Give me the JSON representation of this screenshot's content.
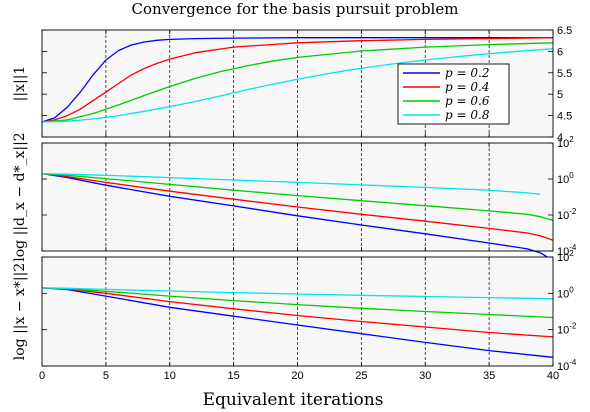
{
  "chart_data": {
    "type": "line",
    "title": "Convergence for the basis pursuit problem",
    "xlabel": "Equivalent iterations",
    "xlim": [
      0,
      40
    ],
    "xticks": [
      "0",
      "5",
      "10",
      "15",
      "20",
      "25",
      "30",
      "35",
      "40"
    ],
    "grid": "vertical dashed lines at x = 5, 10, 15, 20, 25, 30, 35",
    "colors": {
      "p0.2": "#0000ff",
      "p0.4": "#ff0000",
      "p0.6": "#00cc00",
      "p0.8": "#00e5ee"
    },
    "legend": {
      "placement": "top-right of top panel",
      "entries": [
        "p = 0.2",
        "p = 0.4",
        "p = 0.6",
        "p = 0.8"
      ]
    },
    "panels": [
      {
        "ylabel": "||x||1",
        "ylim": [
          4,
          6.5
        ],
        "yscale": "linear",
        "yticks": [
          "4",
          "4.5",
          "5",
          "5.5",
          "6",
          "6.5"
        ],
        "series": [
          {
            "name": "p = 0.2",
            "x": [
              0,
              1,
              2,
              3,
              4,
              5,
              6,
              7,
              8,
              9,
              10,
              12,
              15,
              20,
              25,
              30,
              35,
              40
            ],
            "y": [
              4.35,
              4.45,
              4.7,
              5.05,
              5.45,
              5.8,
              6.02,
              6.15,
              6.22,
              6.26,
              6.28,
              6.3,
              6.31,
              6.32,
              6.32,
              6.32,
              6.32,
              6.32
            ]
          },
          {
            "name": "p = 0.4",
            "x": [
              0,
              1,
              2,
              3,
              4,
              5,
              6,
              7,
              8,
              9,
              10,
              12,
              15,
              20,
              25,
              30,
              35,
              40
            ],
            "y": [
              4.35,
              4.4,
              4.5,
              4.65,
              4.85,
              5.05,
              5.25,
              5.45,
              5.6,
              5.72,
              5.82,
              5.97,
              6.1,
              6.2,
              6.25,
              6.28,
              6.3,
              6.32
            ]
          },
          {
            "name": "p = 0.6",
            "x": [
              0,
              2,
              4,
              6,
              8,
              10,
              12,
              14,
              16,
              18,
              20,
              25,
              30,
              35,
              40
            ],
            "y": [
              4.35,
              4.4,
              4.55,
              4.75,
              4.97,
              5.18,
              5.37,
              5.53,
              5.66,
              5.77,
              5.86,
              6.01,
              6.1,
              6.16,
              6.2
            ]
          },
          {
            "name": "p = 0.8",
            "x": [
              0,
              2,
              4,
              6,
              8,
              10,
              12,
              14,
              16,
              18,
              20,
              22,
              24,
              26,
              28,
              30,
              32,
              34,
              36,
              38,
              40
            ],
            "y": [
              4.35,
              4.37,
              4.42,
              4.5,
              4.6,
              4.71,
              4.83,
              4.96,
              5.1,
              5.23,
              5.35,
              5.46,
              5.56,
              5.65,
              5.73,
              5.8,
              5.86,
              5.92,
              5.97,
              6.02,
              6.06
            ]
          }
        ]
      },
      {
        "ylabel": "log ||d_x − d*_x||2",
        "ylim": [
          0.0001,
          100
        ],
        "yscale": "log",
        "yticks": [
          "10^-4",
          "10^-2",
          "10^0",
          "10^2"
        ],
        "series": [
          {
            "name": "p = 0.2",
            "x": [
              0,
              2,
              5,
              10,
              15,
              20,
              25,
              30,
              35,
              38,
              39,
              40
            ],
            "y": [
              2,
              1.2,
              0.45,
              0.11,
              0.032,
              0.009,
              0.0028,
              0.0009,
              0.00028,
              0.00013,
              8e-05,
              3e-05
            ]
          },
          {
            "name": "p = 0.4",
            "x": [
              0,
              2,
              5,
              10,
              15,
              20,
              25,
              30,
              35,
              38,
              39,
              40
            ],
            "y": [
              2,
              1.35,
              0.65,
              0.21,
              0.075,
              0.028,
              0.011,
              0.0045,
              0.0018,
              0.001,
              0.0007,
              0.0004
            ]
          },
          {
            "name": "p = 0.6",
            "x": [
              0,
              2,
              5,
              10,
              15,
              20,
              25,
              30,
              35,
              38,
              39,
              40
            ],
            "y": [
              2,
              1.6,
              1.05,
              0.5,
              0.24,
              0.12,
              0.062,
              0.033,
              0.017,
              0.011,
              0.008,
              0.005
            ]
          },
          {
            "name": "p = 0.8",
            "x": [
              0,
              2,
              5,
              10,
              15,
              20,
              25,
              30,
              35,
              38,
              39
            ],
            "y": [
              2,
              1.85,
              1.6,
              1.2,
              0.88,
              0.65,
              0.47,
              0.34,
              0.24,
              0.17,
              0.14
            ]
          }
        ]
      },
      {
        "ylabel": "log ||x − x*||2",
        "ylim": [
          0.0001,
          100
        ],
        "yscale": "log",
        "yticks": [
          "10^-4",
          "10^-2",
          "10^0",
          "10^2"
        ],
        "series": [
          {
            "name": "p = 0.2",
            "x": [
              0,
              2,
              5,
              10,
              15,
              20,
              25,
              30,
              35,
              40
            ],
            "y": [
              2,
              1.6,
              0.7,
              0.17,
              0.055,
              0.018,
              0.006,
              0.002,
              0.0007,
              0.0003
            ]
          },
          {
            "name": "p = 0.4",
            "x": [
              0,
              2,
              5,
              10,
              15,
              20,
              25,
              30,
              35,
              40
            ],
            "y": [
              2,
              1.7,
              1.0,
              0.35,
              0.14,
              0.06,
              0.028,
              0.014,
              0.007,
              0.004
            ]
          },
          {
            "name": "p = 0.6",
            "x": [
              0,
              2,
              5,
              10,
              15,
              20,
              25,
              30,
              35,
              40
            ],
            "y": [
              2,
              1.8,
              1.3,
              0.7,
              0.4,
              0.24,
              0.15,
              0.1,
              0.068,
              0.047
            ]
          },
          {
            "name": "p = 0.8",
            "x": [
              0,
              2,
              5,
              10,
              15,
              20,
              25,
              30,
              35,
              40
            ],
            "y": [
              2,
              1.9,
              1.65,
              1.35,
              1.1,
              0.92,
              0.78,
              0.67,
              0.58,
              0.5
            ]
          }
        ]
      }
    ]
  }
}
